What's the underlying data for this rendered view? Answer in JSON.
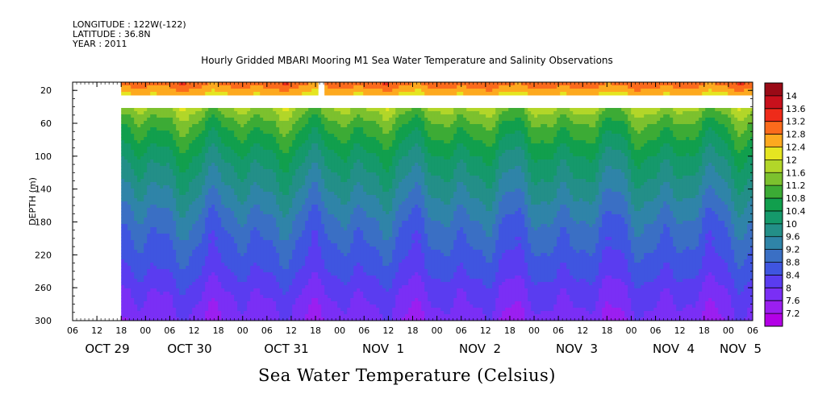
{
  "header": {
    "longitude": "LONGITUDE : 122W(-122)",
    "latitude": "LATITUDE : 36.8N",
    "year": "YEAR : 2011"
  },
  "chart_data": {
    "type": "heatmap",
    "title": "Hourly Gridded MBARI Mooring M1 Sea Water Temperature and Salinity Observations",
    "ylabel": "DEPTH (m)",
    "colorbar_label": "Sea Water Temperature (Celsius)",
    "y_axis_inverted": true,
    "ylim": [
      300,
      10
    ],
    "y_ticks": [
      20,
      60,
      100,
      140,
      180,
      220,
      260,
      300
    ],
    "x_hour_ticks": [
      "06",
      "12",
      "18",
      "00",
      "06",
      "12",
      "18",
      "00",
      "06",
      "12",
      "18",
      "00",
      "06",
      "12",
      "18",
      "00",
      "06",
      "12",
      "18",
      "00",
      "06",
      "12",
      "18",
      "00",
      "06",
      "12",
      "18",
      "00",
      "06"
    ],
    "x_day_labels": [
      "OCT 29",
      "OCT 30",
      "OCT 31",
      "NOV  1",
      "NOV  2",
      "NOV  3",
      "NOV  4",
      "NOV  5"
    ],
    "x_range_hours": [
      "2011-10-29 00:00",
      "2011-11-05 06:00"
    ],
    "data_start": "2011-10-29 12:00",
    "gaps": [
      {
        "depth_range": [
          10,
          30
        ],
        "time_range": [
          "2011-10-31 12:00",
          "2011-10-31 14:00"
        ]
      },
      {
        "depth_range": [
          25,
          40
        ],
        "time_range": [
          "2011-10-29 12:00",
          "2011-11-05 06:00"
        ]
      }
    ],
    "depth_levels": [
      10,
      40,
      60,
      80,
      100,
      120,
      140,
      160,
      180,
      200,
      220,
      240,
      260,
      280,
      300
    ],
    "typical_profile_celsius": [
      13.0,
      11.6,
      11.0,
      10.6,
      10.2,
      9.9,
      9.6,
      9.3,
      9.0,
      8.8,
      8.6,
      8.4,
      8.1,
      7.9,
      7.7
    ],
    "colorbar": {
      "levels": [
        7.2,
        7.6,
        8,
        8.4,
        8.8,
        9.2,
        9.6,
        10,
        10.4,
        10.8,
        11.2,
        11.6,
        12,
        12.4,
        12.8,
        13.2,
        13.6,
        14
      ],
      "labels": [
        "7.2",
        "7.6",
        "8",
        "8.4",
        "8.8",
        "9.2",
        "9.6",
        "10",
        "10.4",
        "10.8",
        "11.2",
        "11.6",
        "12",
        "12.4",
        "12.8",
        "13.2",
        "13.6",
        "14"
      ],
      "colors": [
        "#b300e6",
        "#9b1ff0",
        "#7a2ff5",
        "#5a3cf0",
        "#3f55e0",
        "#3a6fc4",
        "#2f84a8",
        "#238f88",
        "#15996b",
        "#119f4d",
        "#3cab35",
        "#7cc12e",
        "#b2d629",
        "#e5e521",
        "#fda91f",
        "#fb6b1c",
        "#ee2b1a",
        "#c8101c",
        "#9a0a16"
      ]
    }
  },
  "footer": {
    "label": "Sea Water Temperature (Celsius)"
  }
}
